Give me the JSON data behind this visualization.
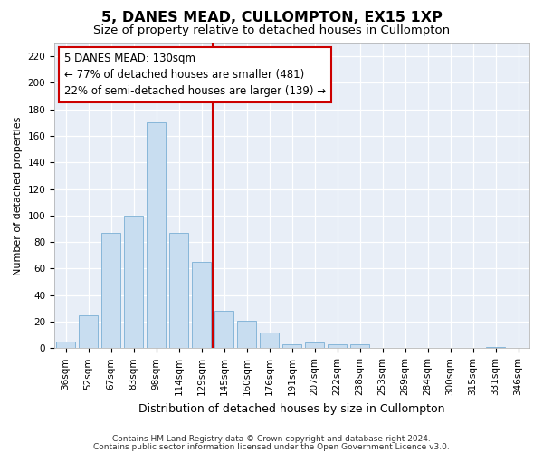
{
  "title": "5, DANES MEAD, CULLOMPTON, EX15 1XP",
  "subtitle": "Size of property relative to detached houses in Cullompton",
  "xlabel": "Distribution of detached houses by size in Cullompton",
  "ylabel": "Number of detached properties",
  "categories": [
    "36sqm",
    "52sqm",
    "67sqm",
    "83sqm",
    "98sqm",
    "114sqm",
    "129sqm",
    "145sqm",
    "160sqm",
    "176sqm",
    "191sqm",
    "207sqm",
    "222sqm",
    "238sqm",
    "253sqm",
    "269sqm",
    "284sqm",
    "300sqm",
    "315sqm",
    "331sqm",
    "346sqm"
  ],
  "values": [
    5,
    25,
    87,
    100,
    170,
    87,
    65,
    28,
    21,
    12,
    3,
    4,
    3,
    3,
    0,
    0,
    0,
    0,
    0,
    1,
    0
  ],
  "bar_color": "#c8ddf0",
  "bar_edge_color": "#7aafd4",
  "vline_x_index": 6.5,
  "vline_color": "#cc0000",
  "annotation_text": "5 DANES MEAD: 130sqm\n← 77% of detached houses are smaller (481)\n22% of semi-detached houses are larger (139) →",
  "annotation_box_facecolor": "#ffffff",
  "annotation_box_edgecolor": "#cc0000",
  "ylim": [
    0,
    230
  ],
  "yticks": [
    0,
    20,
    40,
    60,
    80,
    100,
    120,
    140,
    160,
    180,
    200,
    220
  ],
  "plot_bg_color": "#e8eef7",
  "grid_color": "#ffffff",
  "footer1": "Contains HM Land Registry data © Crown copyright and database right 2024.",
  "footer2": "Contains public sector information licensed under the Open Government Licence v3.0.",
  "title_fontsize": 11.5,
  "subtitle_fontsize": 9.5,
  "xlabel_fontsize": 9,
  "ylabel_fontsize": 8,
  "tick_fontsize": 7.5,
  "annotation_fontsize": 8.5,
  "footer_fontsize": 6.5
}
